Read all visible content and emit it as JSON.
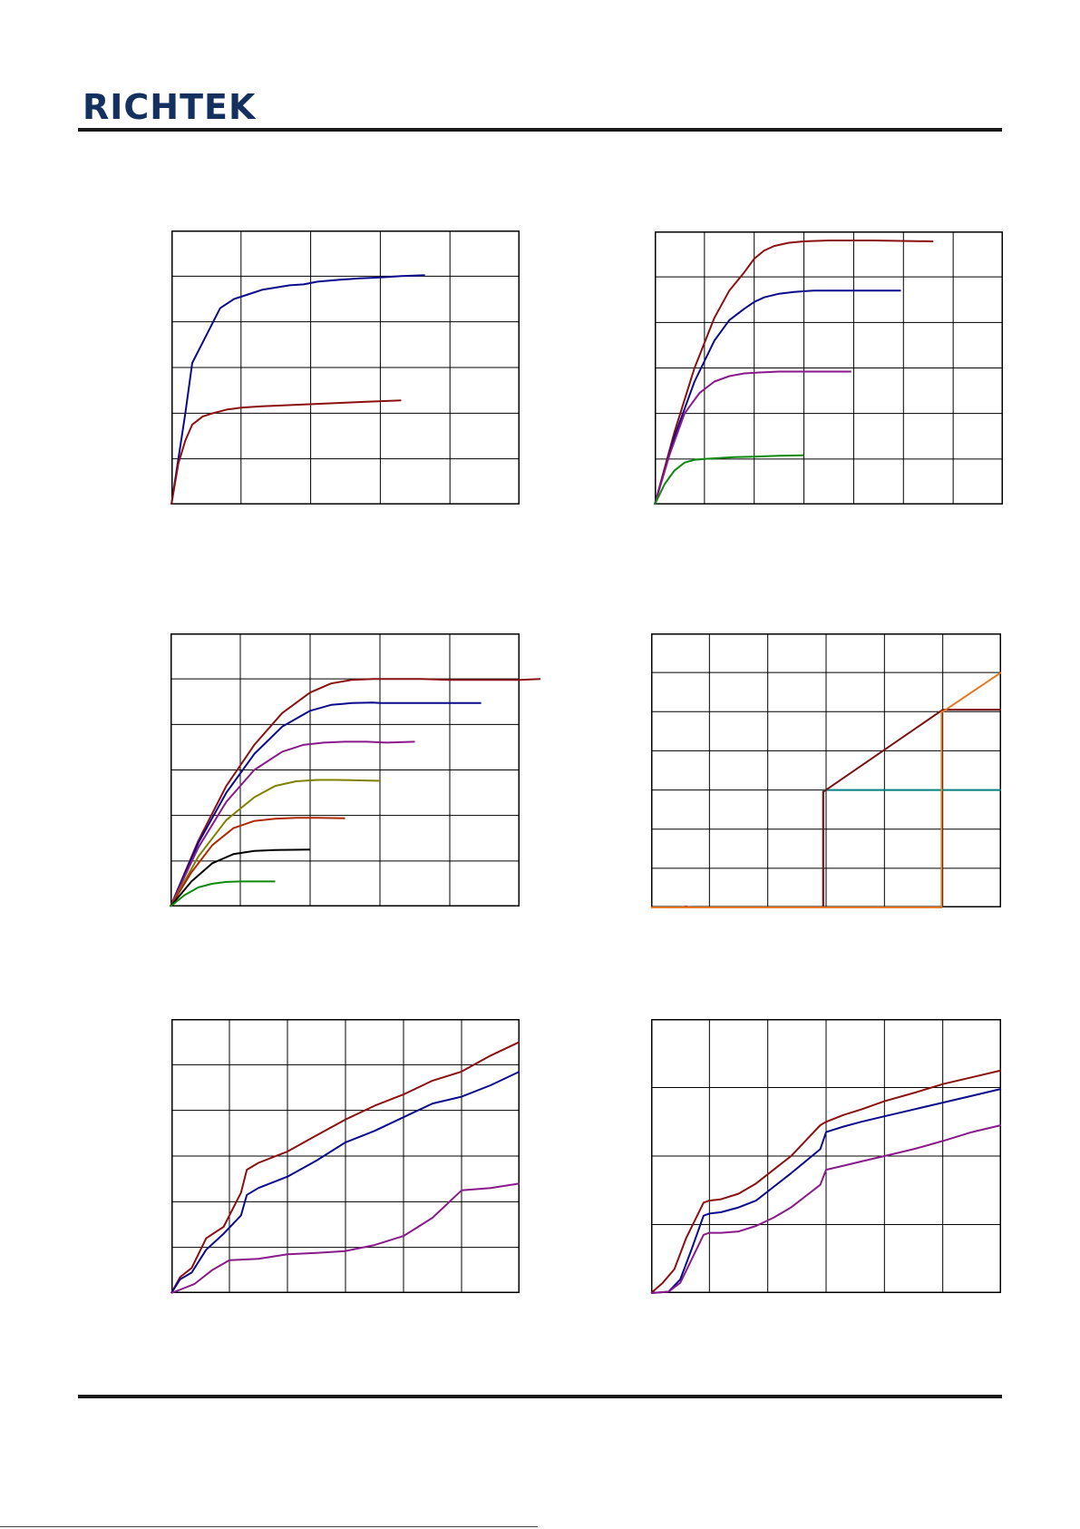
{
  "brand": {
    "logo_text": "RICHTEK",
    "color": "#14305f"
  },
  "chart_data": [
    {
      "type": "line",
      "grid": true,
      "series": [
        {
          "color": "#0a0a8c",
          "x": [
            0,
            0.2,
            0.3,
            0.5,
            0.7,
            0.9,
            1.1,
            1.3,
            1.5,
            1.7,
            1.9,
            2.1,
            2.4,
            2.7,
            3.0,
            3.3,
            3.64
          ],
          "y": [
            0,
            2.0,
            3.1,
            3.7,
            4.3,
            4.5,
            4.6,
            4.7,
            4.75,
            4.8,
            4.82,
            4.88,
            4.92,
            4.95,
            4.97,
            5.0,
            5.02
          ]
        },
        {
          "color": "#8b1010",
          "x": [
            0,
            0.1,
            0.2,
            0.3,
            0.45,
            0.6,
            0.8,
            1.0,
            1.3,
            1.6,
            1.9,
            2.2,
            2.5,
            2.8,
            3.3
          ],
          "y": [
            0,
            0.9,
            1.4,
            1.75,
            1.93,
            2.0,
            2.08,
            2.12,
            2.15,
            2.17,
            2.19,
            2.21,
            2.23,
            2.25,
            2.28
          ]
        }
      ],
      "xlim": [
        0,
        5
      ],
      "ylim": [
        0,
        6
      ]
    },
    {
      "type": "line",
      "grid": true,
      "series": [
        {
          "color": "#8b1010",
          "x": [
            0,
            0.4,
            0.8,
            1.2,
            1.5,
            1.8,
            2.0,
            2.2,
            2.4,
            2.7,
            3.0,
            3.5,
            4.0,
            4.4,
            5.6
          ],
          "y": [
            0,
            1.6,
            3.0,
            4.1,
            4.7,
            5.1,
            5.4,
            5.58,
            5.68,
            5.75,
            5.78,
            5.8,
            5.8,
            5.8,
            5.78
          ]
        },
        {
          "color": "#0a0a8c",
          "x": [
            0,
            0.4,
            0.8,
            1.2,
            1.5,
            1.8,
            2.0,
            2.2,
            2.5,
            2.8,
            3.2,
            3.6,
            4.0,
            4.4,
            4.95
          ],
          "y": [
            0,
            1.5,
            2.7,
            3.6,
            4.05,
            4.3,
            4.45,
            4.55,
            4.63,
            4.67,
            4.7,
            4.7,
            4.7,
            4.7,
            4.7
          ]
        },
        {
          "color": "#8a1a8a",
          "x": [
            0,
            0.3,
            0.6,
            0.9,
            1.2,
            1.5,
            1.8,
            2.1,
            2.5,
            3.0,
            3.5,
            3.95
          ],
          "y": [
            0,
            1.1,
            2.0,
            2.45,
            2.7,
            2.82,
            2.88,
            2.9,
            2.92,
            2.92,
            2.92,
            2.92
          ]
        },
        {
          "color": "#0f8a0f",
          "x": [
            0,
            0.2,
            0.4,
            0.6,
            0.8,
            1.0,
            1.3,
            1.6,
            2.0,
            2.5,
            3.0
          ],
          "y": [
            0,
            0.45,
            0.75,
            0.92,
            0.98,
            1.0,
            1.02,
            1.04,
            1.05,
            1.07,
            1.08
          ]
        }
      ],
      "xlim": [
        0,
        7
      ],
      "ylim": [
        0,
        6
      ]
    },
    {
      "type": "line",
      "grid": true,
      "series": [
        {
          "color": "#8b1010",
          "x": [
            0,
            0.4,
            0.8,
            1.2,
            1.6,
            2.0,
            2.3,
            2.6,
            2.9,
            3.2,
            3.6,
            4.0,
            4.5,
            5.0,
            5.3
          ],
          "y": [
            0,
            1.45,
            2.65,
            3.55,
            4.25,
            4.7,
            4.9,
            4.98,
            5.0,
            5.0,
            5.0,
            4.98,
            4.98,
            4.98,
            5.0
          ]
        },
        {
          "color": "#0a0a8c",
          "x": [
            0,
            0.4,
            0.8,
            1.2,
            1.6,
            2.0,
            2.3,
            2.6,
            2.9,
            3.0,
            3.5,
            4.0,
            4.45
          ],
          "y": [
            0,
            1.4,
            2.5,
            3.35,
            3.95,
            4.3,
            4.43,
            4.47,
            4.48,
            4.47,
            4.47,
            4.47,
            4.47
          ]
        },
        {
          "color": "#8a1a8a",
          "x": [
            0,
            0.4,
            0.8,
            1.2,
            1.6,
            1.9,
            2.2,
            2.5,
            2.8,
            3.1,
            3.5
          ],
          "y": [
            0,
            1.3,
            2.3,
            3.0,
            3.4,
            3.55,
            3.6,
            3.62,
            3.62,
            3.6,
            3.62
          ]
        },
        {
          "color": "#808000",
          "x": [
            0,
            0.4,
            0.8,
            1.2,
            1.5,
            1.8,
            2.1,
            2.4,
            2.7,
            3.0
          ],
          "y": [
            0,
            1.1,
            1.9,
            2.4,
            2.65,
            2.75,
            2.78,
            2.78,
            2.77,
            2.76
          ]
        },
        {
          "color": "#b02a00",
          "x": [
            0,
            0.3,
            0.6,
            0.9,
            1.2,
            1.5,
            1.8,
            2.1,
            2.5
          ],
          "y": [
            0,
            0.75,
            1.35,
            1.72,
            1.88,
            1.93,
            1.95,
            1.95,
            1.94
          ]
        },
        {
          "color": "#000000",
          "x": [
            0,
            0.3,
            0.6,
            0.9,
            1.2,
            1.5,
            2.0
          ],
          "y": [
            0,
            0.55,
            0.95,
            1.15,
            1.22,
            1.24,
            1.25
          ]
        },
        {
          "color": "#0f8a0f",
          "x": [
            0,
            0.2,
            0.4,
            0.6,
            0.8,
            1.0,
            1.5
          ],
          "y": [
            0,
            0.25,
            0.42,
            0.5,
            0.54,
            0.55,
            0.55
          ]
        }
      ],
      "xlim": [
        0,
        5
      ],
      "ylim": [
        0,
        6
      ]
    },
    {
      "type": "line",
      "grid": true,
      "series": [
        {
          "color": "#008080",
          "x": [
            0,
            2.95,
            2.95,
            3.0,
            6.0
          ],
          "y": [
            0,
            0,
            3.0,
            3.0,
            3.0
          ]
        },
        {
          "color": "#7a1010",
          "x": [
            0,
            0.5,
            0.6,
            0.7,
            2.95,
            2.95,
            5.0,
            6.0
          ],
          "y": [
            0,
            0,
            0.02,
            0,
            0,
            2.95,
            5.05,
            5.05
          ]
        },
        {
          "color": "#e87820",
          "x": [
            0,
            4.98,
            4.98,
            5.0,
            6.0
          ],
          "y": [
            0,
            0,
            5.0,
            5.0,
            6.0
          ]
        }
      ],
      "xlim": [
        0,
        6
      ],
      "ylim": [
        0,
        7
      ]
    },
    {
      "type": "line",
      "grid": true,
      "series": [
        {
          "color": "#8b1010",
          "x": [
            0,
            0.15,
            0.35,
            0.6,
            0.9,
            1.2,
            1.3,
            1.5,
            2.0,
            2.5,
            3.0,
            3.5,
            4.0,
            4.5,
            5.0,
            5.5,
            6.0
          ],
          "y": [
            0,
            0.35,
            0.55,
            1.2,
            1.45,
            2.2,
            2.7,
            2.85,
            3.1,
            3.45,
            3.8,
            4.1,
            4.35,
            4.65,
            4.85,
            5.2,
            5.5
          ]
        },
        {
          "color": "#0a0a8c",
          "x": [
            0,
            0.15,
            0.35,
            0.6,
            0.9,
            1.2,
            1.3,
            1.5,
            2.0,
            2.5,
            3.0,
            3.5,
            4.0,
            4.5,
            5.0,
            5.5,
            6.0
          ],
          "y": [
            0,
            0.3,
            0.45,
            0.95,
            1.3,
            1.7,
            2.15,
            2.3,
            2.55,
            2.9,
            3.3,
            3.55,
            3.85,
            4.15,
            4.3,
            4.55,
            4.85
          ]
        },
        {
          "color": "#8a1a8a",
          "x": [
            0,
            0.2,
            0.4,
            0.7,
            1.0,
            1.5,
            2.0,
            2.5,
            3.0,
            3.5,
            4.0,
            4.5,
            5.0,
            5.5,
            6.0
          ],
          "y": [
            0,
            0.1,
            0.2,
            0.5,
            0.72,
            0.75,
            0.85,
            0.88,
            0.92,
            1.05,
            1.25,
            1.65,
            2.25,
            2.3,
            2.4
          ]
        }
      ],
      "xlim": [
        0,
        6
      ],
      "ylim": [
        0,
        6
      ]
    },
    {
      "type": "line",
      "grid": true,
      "series": [
        {
          "color": "#8b1010",
          "x": [
            0,
            0.2,
            0.4,
            0.6,
            0.9,
            1.0,
            1.2,
            1.5,
            1.8,
            2.1,
            2.4,
            2.9,
            3.0,
            3.3,
            3.6,
            4.0,
            4.5,
            5.0,
            5.5,
            6.0
          ],
          "y": [
            0,
            0.15,
            0.35,
            0.8,
            1.32,
            1.35,
            1.37,
            1.45,
            1.6,
            1.8,
            2.0,
            2.45,
            2.5,
            2.6,
            2.68,
            2.8,
            2.92,
            3.05,
            3.15,
            3.25
          ]
        },
        {
          "color": "#0a0a8c",
          "x": [
            0,
            0.3,
            0.5,
            0.7,
            0.9,
            1.0,
            1.2,
            1.5,
            1.8,
            2.1,
            2.4,
            2.9,
            3.0,
            3.3,
            3.6,
            4.0,
            4.5,
            5.0,
            5.5,
            6.0
          ],
          "y": [
            0,
            0.02,
            0.2,
            0.65,
            1.13,
            1.16,
            1.18,
            1.25,
            1.35,
            1.55,
            1.75,
            2.1,
            2.35,
            2.43,
            2.5,
            2.58,
            2.68,
            2.78,
            2.88,
            2.98
          ]
        },
        {
          "color": "#8a1a8a",
          "x": [
            0,
            0.3,
            0.5,
            0.7,
            0.9,
            1.0,
            1.2,
            1.5,
            1.8,
            2.1,
            2.4,
            2.9,
            3.0,
            3.3,
            3.6,
            4.0,
            4.5,
            5.0,
            5.5,
            6.0
          ],
          "y": [
            0,
            0.02,
            0.15,
            0.5,
            0.85,
            0.88,
            0.88,
            0.9,
            0.98,
            1.1,
            1.25,
            1.58,
            1.8,
            1.86,
            1.92,
            2.0,
            2.1,
            2.22,
            2.35,
            2.45
          ]
        }
      ],
      "xlim": [
        0,
        6
      ],
      "ylim": [
        0,
        4
      ]
    }
  ]
}
